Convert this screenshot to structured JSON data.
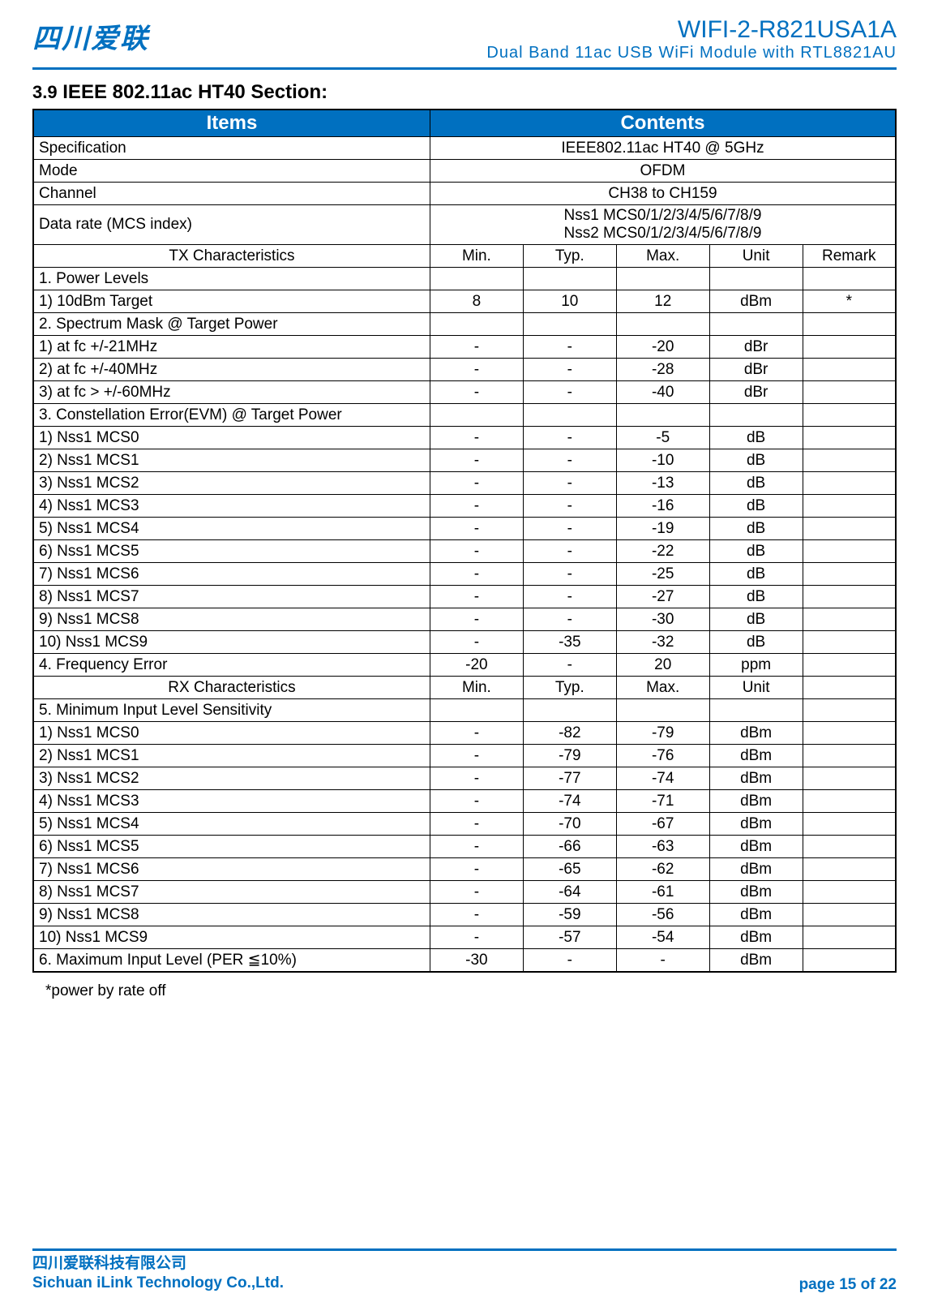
{
  "header": {
    "logo_text": "四川爱联",
    "product_code": "WIFI-2-R821USA1A",
    "product_desc": "Dual Band 11ac USB WiFi Module with RTL8821AU"
  },
  "section": {
    "number": "3.9",
    "title": "IEEE 802.11ac HT40 Section:"
  },
  "table": {
    "header_items": "Items",
    "header_contents": "Contents",
    "info_rows": [
      {
        "label": "Specification",
        "value": "IEEE802.11ac HT40 @ 5GHz"
      },
      {
        "label": "Mode",
        "value": "OFDM"
      },
      {
        "label": "Channel",
        "value": "CH38 to CH159"
      },
      {
        "label": "Data rate (MCS index)",
        "value": "Nss1 MCS0/1/2/3/4/5/6/7/8/9\nNss2 MCS0/1/2/3/4/5/6/7/8/9"
      }
    ],
    "tx_header": {
      "label": "TX Characteristics",
      "c1": "Min.",
      "c2": "Typ.",
      "c3": "Max.",
      "c4": "Unit",
      "c5": "Remark"
    },
    "tx_rows": [
      {
        "label": "1. Power Levels",
        "c1": "",
        "c2": "",
        "c3": "",
        "c4": "",
        "c5": ""
      },
      {
        "label": "1) 10dBm Target",
        "c1": "8",
        "c2": "10",
        "c3": "12",
        "c4": "dBm",
        "c5": "*"
      },
      {
        "label": "2. Spectrum Mask @ Target Power",
        "c1": "",
        "c2": "",
        "c3": "",
        "c4": "",
        "c5": ""
      },
      {
        "label": "1) at fc +/-21MHz",
        "c1": "-",
        "c2": "-",
        "c3": "-20",
        "c4": "dBr",
        "c5": ""
      },
      {
        "label": "2) at fc +/-40MHz",
        "c1": "-",
        "c2": "-",
        "c3": "-28",
        "c4": "dBr",
        "c5": ""
      },
      {
        "label": "3) at fc > +/-60MHz",
        "c1": "-",
        "c2": "-",
        "c3": "-40",
        "c4": "dBr",
        "c5": ""
      },
      {
        "label": "3. Constellation Error(EVM) @ Target Power",
        "c1": "",
        "c2": "",
        "c3": "",
        "c4": "",
        "c5": ""
      },
      {
        "label": "1) Nss1 MCS0",
        "c1": "-",
        "c2": "-",
        "c3": "-5",
        "c4": "dB",
        "c5": ""
      },
      {
        "label": "2) Nss1 MCS1",
        "c1": "-",
        "c2": "-",
        "c3": "-10",
        "c4": "dB",
        "c5": ""
      },
      {
        "label": "3) Nss1 MCS2",
        "c1": "-",
        "c2": "-",
        "c3": "-13",
        "c4": "dB",
        "c5": ""
      },
      {
        "label": "4) Nss1 MCS3",
        "c1": "-",
        "c2": "-",
        "c3": "-16",
        "c4": "dB",
        "c5": ""
      },
      {
        "label": "5) Nss1 MCS4",
        "c1": "-",
        "c2": "-",
        "c3": "-19",
        "c4": "dB",
        "c5": ""
      },
      {
        "label": "6) Nss1 MCS5",
        "c1": "-",
        "c2": "-",
        "c3": "-22",
        "c4": "dB",
        "c5": ""
      },
      {
        "label": "7) Nss1 MCS6",
        "c1": "-",
        "c2": "-",
        "c3": "-25",
        "c4": "dB",
        "c5": ""
      },
      {
        "label": "8) Nss1 MCS7",
        "c1": "-",
        "c2": "-",
        "c3": "-27",
        "c4": "dB",
        "c5": ""
      },
      {
        "label": "9) Nss1 MCS8",
        "c1": "-",
        "c2": "-",
        "c3": "-30",
        "c4": "dB",
        "c5": ""
      },
      {
        "label": "10) Nss1 MCS9",
        "c1": "-",
        "c2": "-35",
        "c3": "-32",
        "c4": "dB",
        "c5": ""
      },
      {
        "label": "4. Frequency Error",
        "c1": "-20",
        "c2": "-",
        "c3": "20",
        "c4": "ppm",
        "c5": ""
      }
    ],
    "rx_header": {
      "label": "RX Characteristics",
      "c1": "Min.",
      "c2": "Typ.",
      "c3": "Max.",
      "c4": "Unit",
      "c5": ""
    },
    "rx_rows": [
      {
        "label": "5. Minimum Input Level Sensitivity",
        "c1": "",
        "c2": "",
        "c3": "",
        "c4": "",
        "c5": ""
      },
      {
        "label": "1) Nss1 MCS0",
        "c1": "-",
        "c2": "-82",
        "c3": "-79",
        "c4": "dBm",
        "c5": ""
      },
      {
        "label": "2) Nss1 MCS1",
        "c1": "-",
        "c2": "-79",
        "c3": "-76",
        "c4": "dBm",
        "c5": ""
      },
      {
        "label": "3) Nss1 MCS2",
        "c1": "-",
        "c2": "-77",
        "c3": "-74",
        "c4": "dBm",
        "c5": ""
      },
      {
        "label": "4) Nss1 MCS3",
        "c1": "-",
        "c2": "-74",
        "c3": "-71",
        "c4": "dBm",
        "c5": ""
      },
      {
        "label": "5) Nss1 MCS4",
        "c1": "-",
        "c2": "-70",
        "c3": "-67",
        "c4": "dBm",
        "c5": ""
      },
      {
        "label": "6) Nss1 MCS5",
        "c1": "-",
        "c2": "-66",
        "c3": "-63",
        "c4": "dBm",
        "c5": ""
      },
      {
        "label": "7) Nss1 MCS6",
        "c1": "-",
        "c2": "-65",
        "c3": "-62",
        "c4": "dBm",
        "c5": ""
      },
      {
        "label": "8) Nss1 MCS7",
        "c1": "-",
        "c2": "-64",
        "c3": "-61",
        "c4": "dBm",
        "c5": ""
      },
      {
        "label": "9) Nss1 MCS8",
        "c1": "-",
        "c2": "-59",
        "c3": "-56",
        "c4": "dBm",
        "c5": ""
      },
      {
        "label": "10) Nss1 MCS9",
        "c1": "-",
        "c2": "-57",
        "c3": "-54",
        "c4": "dBm",
        "c5": ""
      },
      {
        "label": "6. Maximum Input Level (PER ≦10%)",
        "c1": "-30",
        "c2": "-",
        "c3": "-",
        "c4": "dBm",
        "c5": ""
      }
    ]
  },
  "footnote": "*power by rate off",
  "footer": {
    "company_cn": "四川爱联科技有限公司",
    "company_en": "Sichuan iLink Technology Co.,Ltd.",
    "page_label": "page",
    "page_current": "15",
    "page_of": "of",
    "page_total": "22"
  },
  "style": {
    "accent_color": "#0070c0",
    "border_color": "#000000",
    "bg_color": "#ffffff",
    "header_font_size": 24,
    "body_font_size": 19
  }
}
